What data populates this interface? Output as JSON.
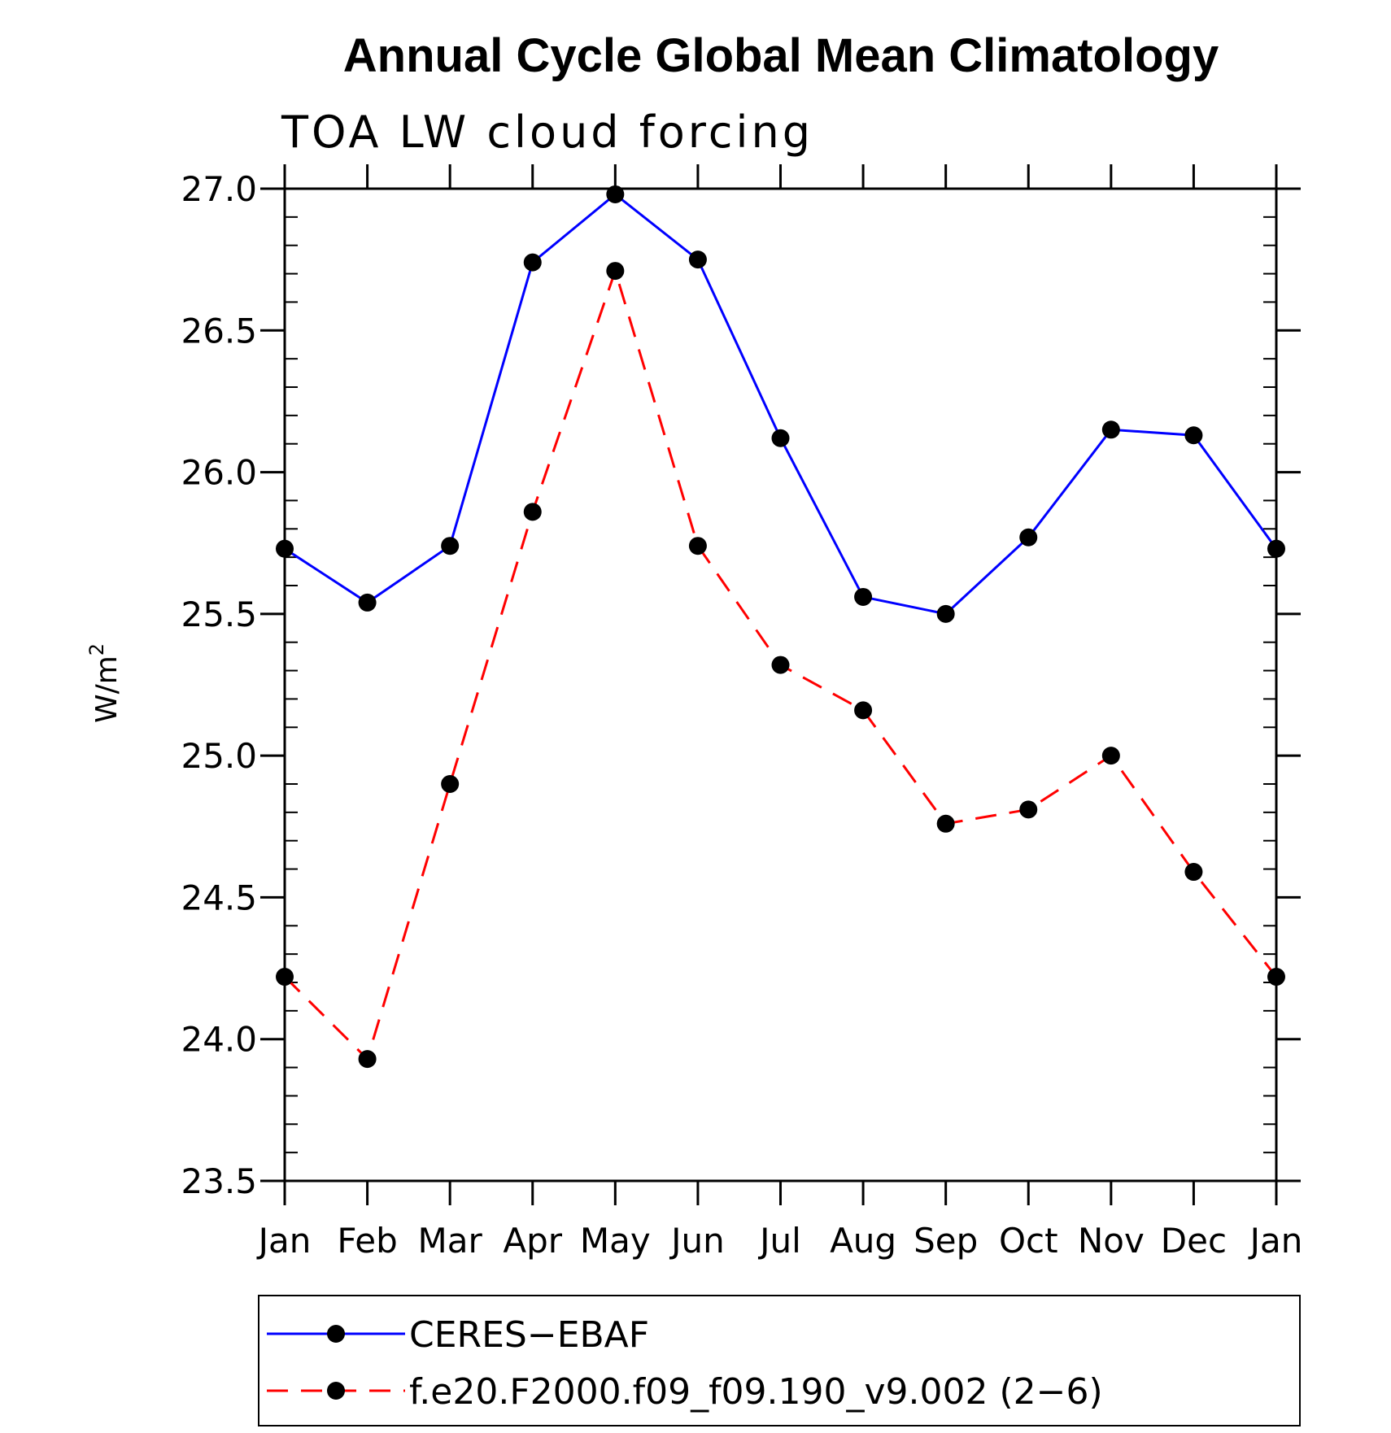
{
  "chart_data": {
    "type": "line",
    "title": "Annual Cycle Global Mean Climatology",
    "subtitle": "TOA LW cloud forcing",
    "ylabel_base": "W/m",
    "ylabel_sup": "2",
    "categories": [
      "Jan",
      "Feb",
      "Mar",
      "Apr",
      "May",
      "Jun",
      "Jul",
      "Aug",
      "Sep",
      "Oct",
      "Nov",
      "Dec",
      "Jan"
    ],
    "ylim": [
      23.5,
      27.0
    ],
    "yticks": [
      "23.5",
      "24.0",
      "24.5",
      "25.0",
      "25.5",
      "26.0",
      "26.5",
      "27.0"
    ],
    "ytick_values": [
      23.5,
      24.0,
      24.5,
      25.0,
      25.5,
      26.0,
      26.5,
      27.0
    ],
    "series": [
      {
        "name": "CERES−EBAF",
        "color": "#0000ff",
        "dash": "solid",
        "values": [
          25.73,
          25.54,
          25.74,
          26.74,
          26.98,
          26.75,
          26.12,
          25.56,
          25.5,
          25.77,
          26.15,
          26.13,
          25.73
        ]
      },
      {
        "name": "f.e20.F2000.f09_f09.190_v9.002 (2−6)",
        "color": "#ff0000",
        "dash": "dashed",
        "values": [
          24.22,
          23.93,
          24.9,
          25.86,
          26.71,
          25.74,
          25.32,
          25.16,
          24.76,
          24.81,
          25.0,
          24.59,
          24.22
        ]
      }
    ],
    "grid": false,
    "legend_position": "bottom"
  }
}
